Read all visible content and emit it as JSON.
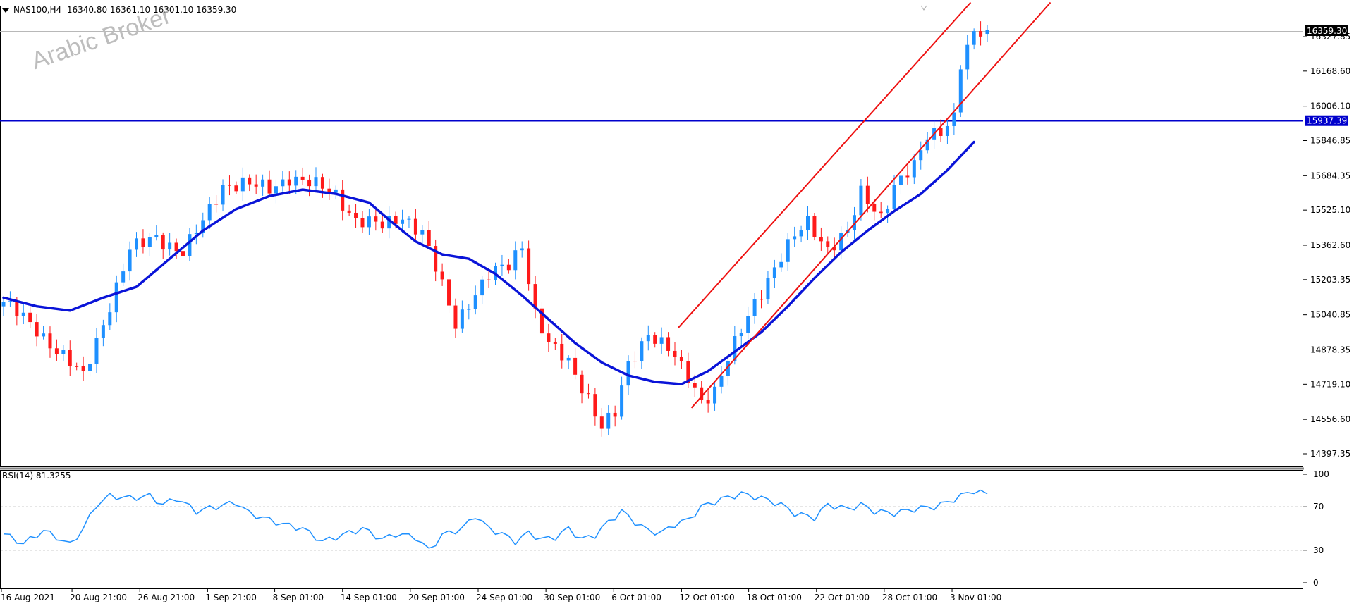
{
  "header": {
    "symbol": "NAS100,H4",
    "ohlc": "16340.80 16361.10 16301.10 16359.30"
  },
  "watermark": "Arabic Broker",
  "rsi_header": "RSI(14) 81.3255",
  "colors": {
    "bull": "#1e90ff",
    "bear": "#ff1a1a",
    "ma": "#0a14d8",
    "channel": "#ee1111",
    "level": "#0000cc",
    "rsi": "#1e90ff"
  },
  "chart_data": [
    {
      "type": "candlestick",
      "title": "",
      "symbol": "NAS100",
      "timeframe": "H4",
      "last_price": "16359.30",
      "ylim": [
        14397.35,
        16486.3
      ],
      "y_ticks": [
        "16327.85",
        "16168.60",
        "16006.10",
        "15846.85",
        "15684.35",
        "15525.10",
        "15362.60",
        "15203.35",
        "15040.85",
        "14878.35",
        "14719.10",
        "14556.60",
        "14397.35"
      ],
      "x_ticks": [
        "16 Aug 2021",
        "20 Aug 21:00",
        "26 Aug 21:00",
        "1 Sep 21:00",
        "8 Sep 01:00",
        "14 Sep 01:00",
        "20 Sep 01:00",
        "24 Sep 01:00",
        "30 Sep 01:00",
        "6 Oct 01:00",
        "12 Oct 01:00",
        "18 Oct 01:00",
        "22 Oct 01:00",
        "28 Oct 01:00",
        "3 Nov 01:00"
      ],
      "horizontal_level": {
        "value": 15937.39,
        "label": "15937.39"
      },
      "price_label": "16359.30",
      "close_path": [
        [
          0,
          15100
        ],
        [
          5,
          14970
        ],
        [
          9,
          14850
        ],
        [
          12,
          14750
        ],
        [
          14,
          14920
        ],
        [
          19,
          15340
        ],
        [
          23,
          15400
        ],
        [
          27,
          15330
        ],
        [
          30,
          15470
        ],
        [
          33,
          15640
        ],
        [
          36,
          15650
        ],
        [
          40,
          15620
        ],
        [
          43,
          15680
        ],
        [
          46,
          15650
        ],
        [
          50,
          15600
        ],
        [
          53,
          15480
        ],
        [
          57,
          15450
        ],
        [
          60,
          15500
        ],
        [
          63,
          15420
        ],
        [
          66,
          15170
        ],
        [
          68,
          15000
        ],
        [
          70,
          15100
        ],
        [
          73,
          15220
        ],
        [
          76,
          15270
        ],
        [
          78,
          15370
        ],
        [
          80,
          15050
        ],
        [
          82,
          14900
        ],
        [
          85,
          14820
        ],
        [
          88,
          14660
        ],
        [
          90,
          14520
        ],
        [
          92,
          14580
        ],
        [
          94,
          14810
        ],
        [
          97,
          14960
        ],
        [
          100,
          14880
        ],
        [
          103,
          14750
        ],
        [
          105,
          14650
        ],
        [
          107,
          14690
        ],
        [
          110,
          14900
        ],
        [
          113,
          15100
        ],
        [
          116,
          15260
        ],
        [
          119,
          15400
        ],
        [
          121,
          15470
        ],
        [
          124,
          15350
        ],
        [
          127,
          15420
        ],
        [
          129,
          15600
        ],
        [
          132,
          15500
        ],
        [
          134,
          15640
        ],
        [
          137,
          15720
        ],
        [
          139,
          15870
        ],
        [
          141,
          15900
        ],
        [
          143,
          15960
        ],
        [
          144,
          16200
        ],
        [
          146,
          16330
        ],
        [
          148,
          16359
        ]
      ],
      "moving_average": [
        [
          0,
          15120
        ],
        [
          5,
          15080
        ],
        [
          10,
          15060
        ],
        [
          15,
          15120
        ],
        [
          20,
          15170
        ],
        [
          25,
          15300
        ],
        [
          30,
          15430
        ],
        [
          35,
          15530
        ],
        [
          40,
          15590
        ],
        [
          45,
          15620
        ],
        [
          50,
          15600
        ],
        [
          55,
          15560
        ],
        [
          58,
          15480
        ],
        [
          62,
          15380
        ],
        [
          66,
          15320
        ],
        [
          70,
          15300
        ],
        [
          74,
          15230
        ],
        [
          78,
          15130
        ],
        [
          82,
          15020
        ],
        [
          86,
          14910
        ],
        [
          90,
          14820
        ],
        [
          94,
          14760
        ],
        [
          98,
          14730
        ],
        [
          102,
          14720
        ],
        [
          106,
          14780
        ],
        [
          110,
          14870
        ],
        [
          114,
          14960
        ],
        [
          118,
          15080
        ],
        [
          122,
          15210
        ],
        [
          126,
          15330
        ],
        [
          130,
          15430
        ],
        [
          134,
          15520
        ],
        [
          138,
          15600
        ],
        [
          142,
          15710
        ],
        [
          146,
          15840
        ]
      ],
      "channel_lines": [
        {
          "from": [
            101.5,
            14980
          ],
          "to": [
            145.5,
            16486
          ]
        },
        {
          "from": [
            103.5,
            14610
          ],
          "to": [
            157.5,
            16486
          ]
        }
      ]
    },
    {
      "type": "line",
      "title": "RSI(14) 81.3255",
      "ylim": [
        0,
        100
      ],
      "y_ticks": [
        "100",
        "70",
        "30",
        "0"
      ],
      "levels": [
        70,
        30
      ],
      "values": [
        [
          0,
          45
        ],
        [
          3,
          36
        ],
        [
          6,
          48
        ],
        [
          8,
          42
        ],
        [
          10,
          35
        ],
        [
          12,
          50
        ],
        [
          14,
          72
        ],
        [
          16,
          80
        ],
        [
          19,
          78
        ],
        [
          22,
          80
        ],
        [
          24,
          72
        ],
        [
          26,
          78
        ],
        [
          29,
          66
        ],
        [
          32,
          70
        ],
        [
          35,
          74
        ],
        [
          37,
          64
        ],
        [
          39,
          60
        ],
        [
          42,
          54
        ],
        [
          45,
          50
        ],
        [
          48,
          38
        ],
        [
          51,
          44
        ],
        [
          54,
          50
        ],
        [
          57,
          40
        ],
        [
          59,
          45
        ],
        [
          62,
          42
        ],
        [
          64,
          30
        ],
        [
          66,
          44
        ],
        [
          69,
          50
        ],
        [
          71,
          62
        ],
        [
          73,
          50
        ],
        [
          75,
          45
        ],
        [
          77,
          38
        ],
        [
          79,
          46
        ],
        [
          81,
          40
        ],
        [
          83,
          42
        ],
        [
          85,
          50
        ],
        [
          87,
          40
        ],
        [
          89,
          44
        ],
        [
          91,
          56
        ],
        [
          93,
          66
        ],
        [
          95,
          56
        ],
        [
          97,
          48
        ],
        [
          99,
          46
        ],
        [
          101,
          54
        ],
        [
          103,
          58
        ],
        [
          105,
          70
        ],
        [
          108,
          77
        ],
        [
          111,
          82
        ],
        [
          114,
          78
        ],
        [
          117,
          72
        ],
        [
          119,
          64
        ],
        [
          122,
          60
        ],
        [
          124,
          72
        ],
        [
          127,
          68
        ],
        [
          129,
          72
        ],
        [
          131,
          66
        ],
        [
          134,
          64
        ],
        [
          137,
          68
        ],
        [
          140,
          70
        ],
        [
          142,
          74
        ],
        [
          144,
          80
        ],
        [
          146,
          85
        ],
        [
          148,
          81.3
        ]
      ]
    }
  ]
}
